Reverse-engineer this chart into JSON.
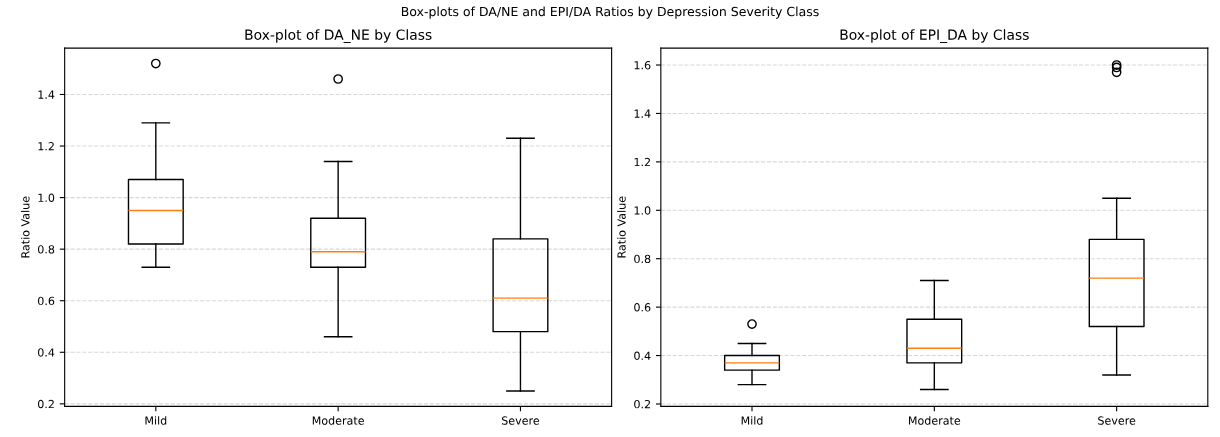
{
  "chart_data": [
    {
      "type": "box",
      "title": "Box-plot of DA_NE by Class",
      "ylabel": "Ratio Value",
      "annotations": [
        "Box-plots of DA/NE and EPI/DA Ratios by Depression Severity Class"
      ],
      "categories": [
        "Mild",
        "Moderate",
        "Severe"
      ],
      "boxes": [
        {
          "low": 0.73,
          "q1": 0.82,
          "median": 0.95,
          "q3": 1.07,
          "high": 1.29,
          "outliers": [
            1.52
          ]
        },
        {
          "low": 0.46,
          "q1": 0.73,
          "median": 0.79,
          "q3": 0.92,
          "high": 1.14,
          "outliers": [
            1.46
          ]
        },
        {
          "low": 0.25,
          "q1": 0.48,
          "median": 0.61,
          "q3": 0.84,
          "high": 1.23
        }
      ],
      "ylim": [
        0.19,
        1.58
      ],
      "yticks": [
        0.2,
        0.4,
        0.6,
        0.8,
        {
          "value": 1.0,
          "label": "1.0"
        },
        1.2,
        1.4
      ],
      "grid": "y"
    },
    {
      "type": "box",
      "title": "Box-plot of EPI_DA by Class",
      "ylabel": "Ratio Value",
      "categories": [
        "Mild",
        "Moderate",
        "Severe"
      ],
      "boxes": [
        {
          "low": 0.28,
          "q1": 0.34,
          "median": 0.37,
          "q3": 0.4,
          "high": 0.45,
          "outliers": [
            0.53
          ]
        },
        {
          "low": 0.26,
          "q1": 0.37,
          "median": 0.43,
          "q3": 0.55,
          "high": 0.71
        },
        {
          "low": 0.32,
          "q1": 0.52,
          "median": 0.72,
          "q3": 0.88,
          "high": 1.05,
          "outliers": [
            1.57,
            1.59,
            1.6
          ]
        }
      ],
      "ylim": [
        0.19,
        1.67
      ],
      "yticks": [
        0.2,
        0.4,
        0.6,
        0.8,
        {
          "value": 1.0,
          "label": "1.0"
        },
        1.2,
        1.4,
        1.6
      ],
      "grid": "y"
    }
  ]
}
